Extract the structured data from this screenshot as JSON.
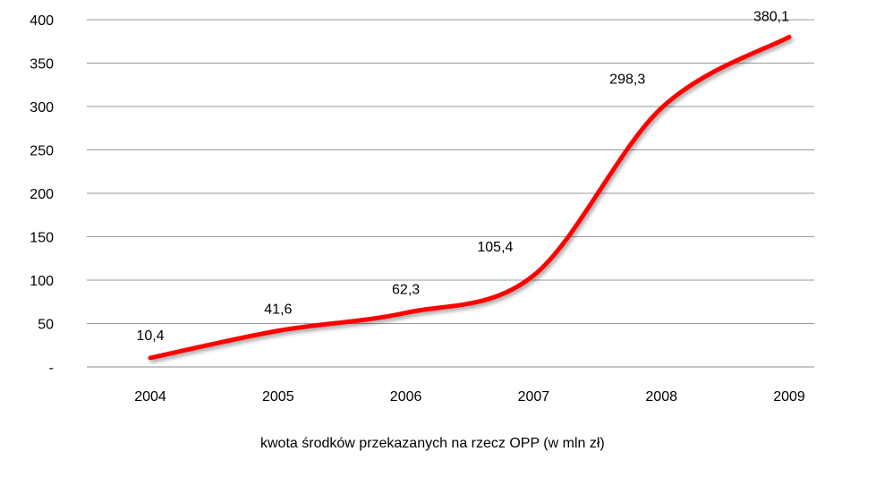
{
  "chart_data": {
    "type": "line",
    "title": "",
    "xlabel": "",
    "ylabel": "",
    "categories": [
      "2004",
      "2005",
      "2006",
      "2007",
      "2008",
      "2009"
    ],
    "series": [
      {
        "name": "kwota środków przekazanych na rzecz OPP (w mln zł)",
        "values": [
          10.4,
          41.6,
          62.3,
          105.4,
          298.3,
          380.1
        ],
        "labels": [
          "10,4",
          "41,6",
          "62,3",
          "105,4",
          "298,3",
          "380,1"
        ],
        "color": "#ff0000"
      }
    ],
    "ylim": [
      0,
      400
    ],
    "yticks": [
      0,
      50,
      100,
      150,
      200,
      250,
      300,
      350,
      400
    ],
    "ytick_labels": [
      "-",
      "50",
      "100",
      "150",
      "200",
      "250",
      "300",
      "350",
      "400"
    ],
    "grid": true,
    "smooth": true,
    "legend_position": "bottom"
  }
}
